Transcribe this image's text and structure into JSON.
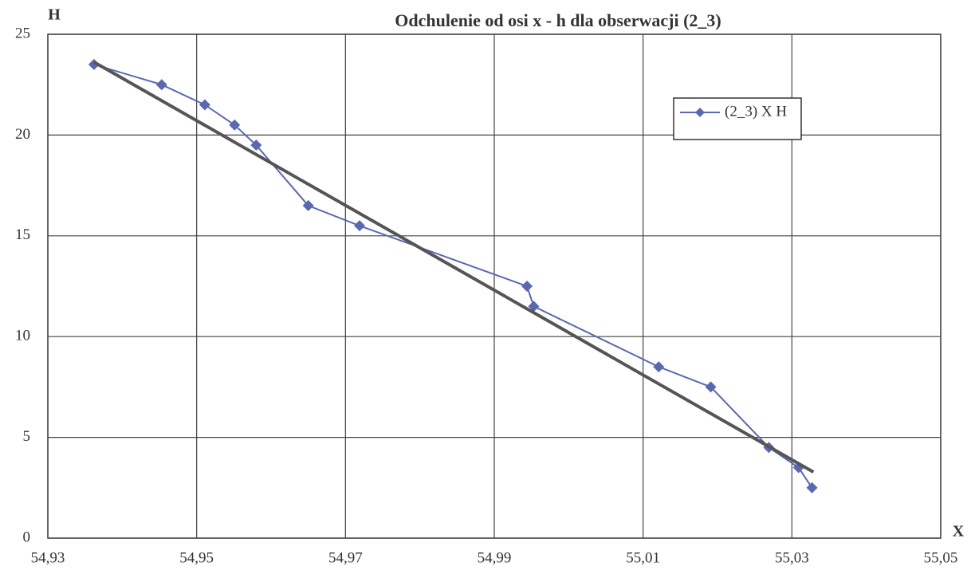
{
  "chart_data": {
    "type": "scatter",
    "title": "Odchulenie od osi x - h dla obserwacji (2_3)",
    "x_label": "X",
    "y_label": "H",
    "xlim": [
      54.93,
      55.05
    ],
    "xticks": [
      {
        "value": 54.93,
        "label": "54,93"
      },
      {
        "value": 54.95,
        "label": "54,95"
      },
      {
        "value": 54.97,
        "label": "54,97"
      },
      {
        "value": 54.99,
        "label": "54,99"
      },
      {
        "value": 55.01,
        "label": "55,01"
      },
      {
        "value": 55.03,
        "label": "55,03"
      },
      {
        "value": 55.05,
        "label": "55,05"
      }
    ],
    "ylim": [
      0,
      25
    ],
    "yticks": [
      0,
      5,
      10,
      15,
      20,
      25
    ],
    "grid": true,
    "legend": "upper right",
    "series": [
      {
        "name": "(2_3) X H",
        "color": "#5a68b0",
        "x": [
          54.9362,
          54.9453,
          54.9511,
          54.9551,
          54.958,
          54.965,
          54.9719,
          54.9944,
          54.9953,
          55.0121,
          55.0191,
          55.0269,
          55.0309,
          55.0327
        ],
        "values": [
          23.5,
          22.5,
          21.5,
          20.5,
          19.5,
          16.5,
          15.5,
          12.5,
          11.5,
          8.5,
          7.5,
          4.5,
          3.5,
          2.5
        ]
      }
    ],
    "trendline": {
      "color": "#555555",
      "x": [
        54.9362,
        55.0329
      ],
      "values": [
        23.62,
        3.28
      ]
    }
  }
}
